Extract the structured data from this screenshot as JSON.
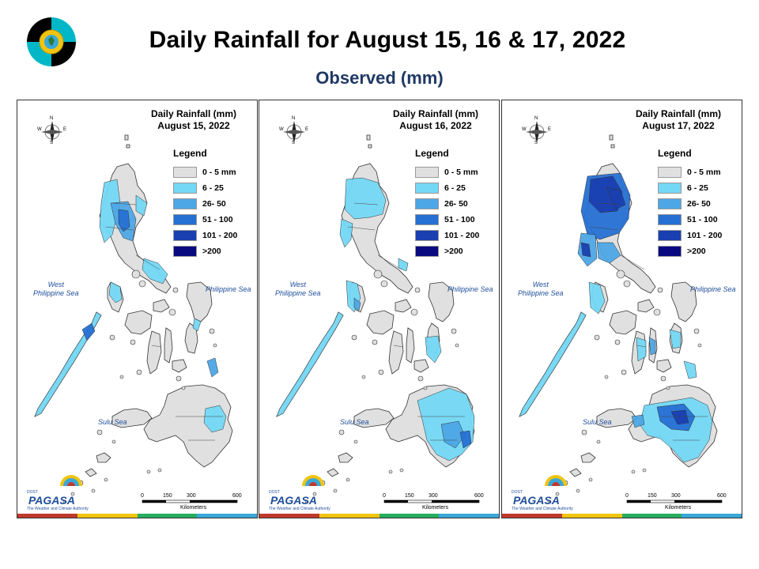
{
  "title": "Daily Rainfall for August 15, 16 & 17, 2022",
  "subtitle": "Observed (mm)",
  "legend": {
    "title": "Legend",
    "items": [
      {
        "label": "0 - 5 mm",
        "color": "#e0e0e0"
      },
      {
        "label": "6 - 25",
        "color": "#73d8f5"
      },
      {
        "label": "26- 50",
        "color": "#4da6e6"
      },
      {
        "label": "51 - 100",
        "color": "#2670d3"
      },
      {
        "label": "101 - 200",
        "color": "#1a3fb0"
      },
      {
        "label": ">200",
        "color": "#0a0a80"
      }
    ]
  },
  "panels": [
    {
      "title_line1": "Daily Rainfall (mm)",
      "title_line2": "August 15, 2022"
    },
    {
      "title_line1": "Daily Rainfall (mm)",
      "title_line2": "August 16, 2022"
    },
    {
      "title_line1": "Daily Rainfall (mm)",
      "title_line2": "August 17, 2022"
    }
  ],
  "seas": {
    "west": "West\nPhilippine Sea",
    "east": "Philippine Sea",
    "sulu": "Sulu Sea"
  },
  "compass": {
    "n": "N",
    "s": "S",
    "e": "E",
    "w": "W"
  },
  "scale": {
    "ticks": [
      "0",
      "150",
      "300",
      "600"
    ],
    "unit": "Kilometers"
  },
  "branding": {
    "agency": "PAGASA",
    "tagline": "The Weather and Climate Authority",
    "prefix": "DOST"
  },
  "colors": {
    "title_blue": "#1f3864",
    "sea_label": "#1f4e9a",
    "strip": [
      "#c0392b",
      "#f1c40f",
      "#27ae60",
      "#3ba7d8"
    ]
  }
}
